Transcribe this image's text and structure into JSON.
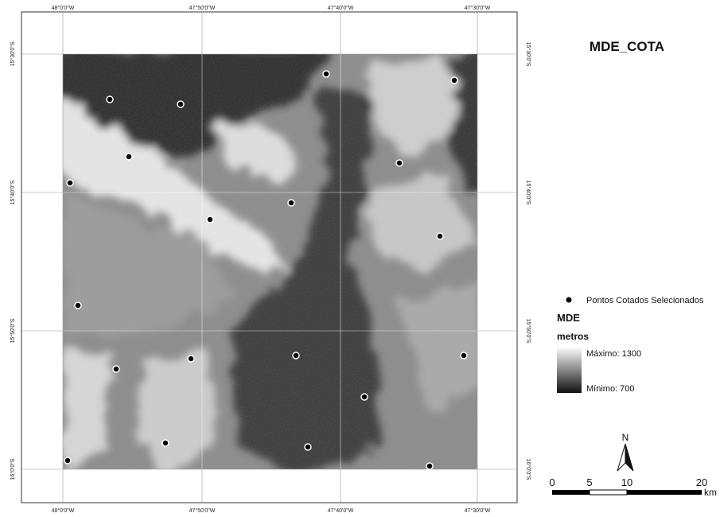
{
  "title": "MDE_COTA",
  "graticule": {
    "lon_labels": [
      "48°0'0\"W",
      "47°50'0\"W",
      "47°40'0\"W",
      "47°30'0\"W"
    ],
    "lat_labels": [
      "15°30'0\"S",
      "15°40'0\"S",
      "15°50'0\"S",
      "16°0'0\"S"
    ]
  },
  "legend": {
    "points_label": "Pontos Cotados Selecionados",
    "raster_title": "MDE",
    "unit": "metros",
    "max_label": "Máximo: 1300",
    "min_label": "Mínimo: 700"
  },
  "north_arrow": "N",
  "scale_bar": {
    "labels": [
      "0",
      "5",
      "10",
      "20"
    ],
    "unit": "km"
  }
}
